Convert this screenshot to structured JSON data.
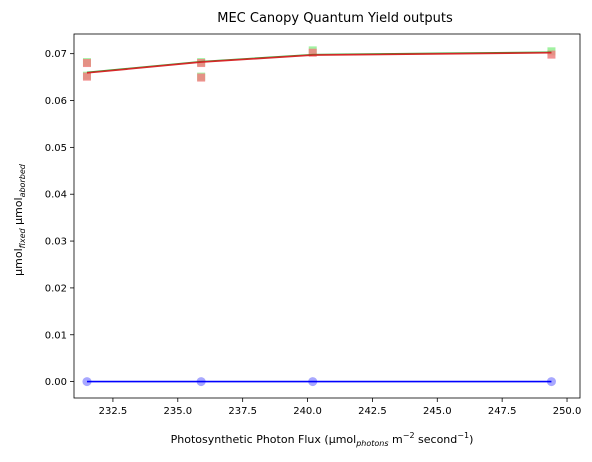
{
  "chart_data": {
    "type": "scatter",
    "title": "MEC Canopy Quantum Yield outputs",
    "xlabel": {
      "base": "Photosynthetic Photon Flux (µmol",
      "sub": "photons",
      "mid1": " m",
      "sup1": "−2",
      "mid2": " second",
      "sup2": "−1",
      "end": ")"
    },
    "ylabel": {
      "a": "µmol",
      "a_sub": "fixed",
      "b": " µmol",
      "b_sub": "aborbed"
    },
    "xlim": [
      231.0,
      250.5
    ],
    "ylim": [
      -0.0035,
      0.0742
    ],
    "xticks": [
      232.5,
      235.0,
      237.5,
      240.0,
      242.5,
      245.0,
      247.5,
      250.0
    ],
    "xtick_labels": [
      "232.5",
      "235.0",
      "237.5",
      "240.0",
      "242.5",
      "245.0",
      "247.5",
      "250.0"
    ],
    "yticks": [
      0.0,
      0.01,
      0.02,
      0.03,
      0.04,
      0.05,
      0.06,
      0.07
    ],
    "ytick_labels": [
      "0.00",
      "0.01",
      "0.02",
      "0.03",
      "0.04",
      "0.05",
      "0.06",
      "0.07"
    ],
    "grid": false,
    "series": [
      {
        "marker": "square",
        "color": "#90ee90",
        "x": [
          231.5,
          231.5,
          235.9,
          235.9,
          240.2,
          249.4
        ],
        "y": [
          0.0682,
          0.0653,
          0.0682,
          0.0651,
          0.0707,
          0.0705
        ]
      },
      {
        "marker": "square",
        "color": "#f08080",
        "x": [
          231.5,
          231.5,
          235.9,
          235.9,
          240.2,
          249.4
        ],
        "y": [
          0.068,
          0.0651,
          0.068,
          0.0649,
          0.0702,
          0.0698
        ]
      },
      {
        "marker": "circle",
        "color": "#9999ff",
        "x": [
          231.5,
          235.9,
          240.2,
          249.4
        ],
        "y": [
          0.0,
          0.0,
          0.0,
          0.0
        ]
      },
      {
        "marker": "line",
        "color": "#2ca02c",
        "x": [
          231.5,
          235.9,
          240.2,
          249.4
        ],
        "y": [
          0.066,
          0.0683,
          0.0698,
          0.0703
        ]
      },
      {
        "marker": "line",
        "color": "#d62728",
        "x": [
          231.5,
          235.9,
          240.2,
          249.4
        ],
        "y": [
          0.0659,
          0.0682,
          0.0697,
          0.0702
        ]
      },
      {
        "marker": "line",
        "color": "#0000ff",
        "x": [
          231.5,
          235.9,
          240.2,
          249.4
        ],
        "y": [
          0.0,
          0.0,
          0.0,
          0.0
        ]
      }
    ]
  }
}
